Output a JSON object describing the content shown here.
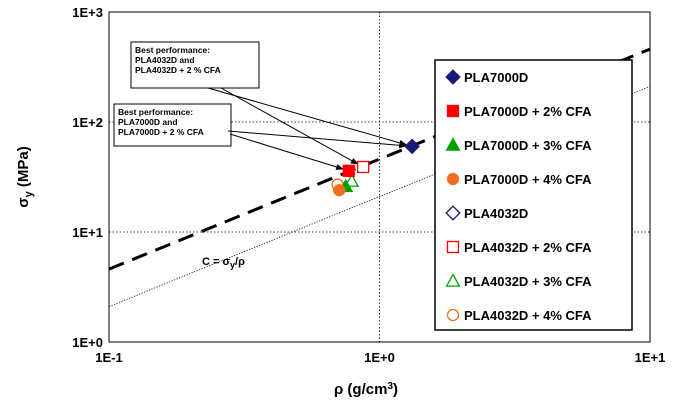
{
  "chart_data": {
    "type": "scatter",
    "x_scale": "log",
    "y_scale": "log",
    "xlim": [
      0.1,
      10
    ],
    "ylim": [
      1,
      1000
    ],
    "x_ticks": [
      "1E-1",
      "1E+0",
      "1E+1"
    ],
    "y_ticks": [
      "1E+0",
      "1E+1",
      "1E+2",
      "1E+3"
    ],
    "xlabel": "ρ (g/cm³)",
    "ylabel": "σy (MPa)",
    "grid": "dotted, major decades",
    "legend_position": "right",
    "series": [
      {
        "name": "PLA7000D",
        "color": "#1a1a7a",
        "marker": "diamond",
        "filled": true,
        "x": 1.32,
        "y": 60
      },
      {
        "name": "PLA7000D + 2% CFA",
        "color": "#ff0000",
        "marker": "square",
        "filled": true,
        "x": 0.77,
        "y": 36
      },
      {
        "name": "PLA7000D + 3% CFA",
        "color": "#00a000",
        "marker": "triangle",
        "filled": true,
        "x": 0.75,
        "y": 26
      },
      {
        "name": "PLA7000D + 4% CFA",
        "color": "#f07020",
        "marker": "circle",
        "filled": true,
        "x": 0.71,
        "y": 24
      },
      {
        "name": "PLA4032D",
        "color": "#1a1a7a",
        "marker": "diamond",
        "filled": false,
        "x": 1.32,
        "y": 60
      },
      {
        "name": "PLA4032D + 2% CFA",
        "color": "#ff0000",
        "marker": "square",
        "filled": false,
        "x": 0.87,
        "y": 39
      },
      {
        "name": "PLA4032D + 3% CFA",
        "color": "#00a000",
        "marker": "triangle",
        "filled": false,
        "x": 0.79,
        "y": 29
      },
      {
        "name": "PLA4032D + 4% CFA",
        "color": "#f07020",
        "marker": "circle",
        "filled": false,
        "x": 0.7,
        "y": 27
      }
    ],
    "guide_lines": [
      {
        "label": "C = σy/ρ",
        "style": "dashed",
        "coeff": 46
      },
      {
        "style": "dotted",
        "coeff": 21
      }
    ],
    "annotations": [
      {
        "lines": [
          "Best performance:",
          "PLA4032D and",
          "PLA4032D + 2 % CFA"
        ],
        "targets": [
          [
            1.32,
            60
          ],
          [
            0.87,
            39
          ]
        ]
      },
      {
        "lines": [
          "Best performance:",
          "PLA7000D and",
          "PLA7000D + 2 % CFA"
        ],
        "targets": [
          [
            1.32,
            60
          ],
          [
            0.77,
            36
          ]
        ]
      }
    ]
  }
}
